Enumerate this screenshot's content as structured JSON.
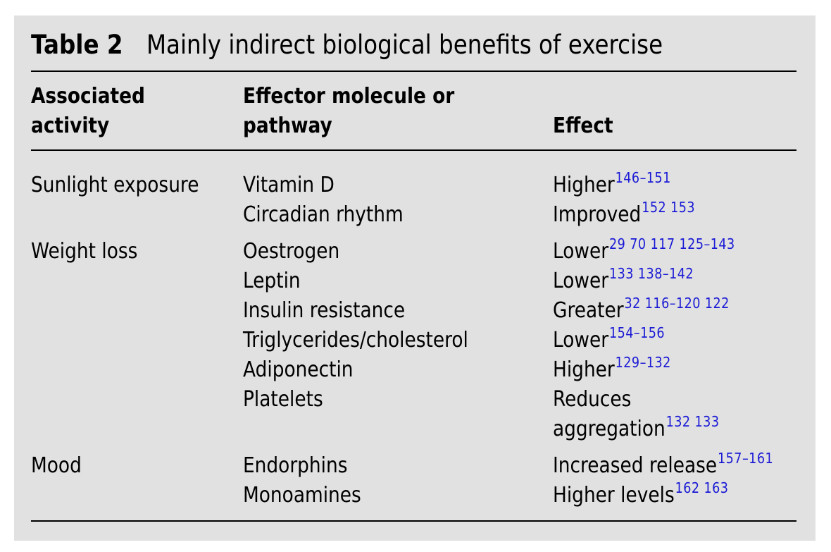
{
  "table": {
    "label": "Table 2",
    "title": "Mainly indirect biological benefits of exercise",
    "headers": {
      "activity": [
        "Associated",
        "activity"
      ],
      "effector": [
        "Effector molecule or",
        "pathway"
      ],
      "effect": "Effect"
    },
    "groups": [
      {
        "activity": "Sunlight exposure",
        "rows": [
          {
            "effector": "Vitamin D",
            "effect": "Higher",
            "refs": "146–151"
          },
          {
            "effector": "Circadian rhythm",
            "effect": "Improved",
            "refs": "152 153"
          }
        ]
      },
      {
        "activity": "Weight loss",
        "rows": [
          {
            "effector": "Oestrogen",
            "effect": "Lower",
            "refs": "29 70 117 125–143"
          },
          {
            "effector": "Leptin",
            "effect": "Lower",
            "refs": "133 138–142"
          },
          {
            "effector": "Insulin resistance",
            "effect": "Greater",
            "refs": "32 116–120 122"
          },
          {
            "effector": "Triglycerides/cholesterol",
            "effect": "Lower",
            "refs": "154–156"
          },
          {
            "effector": "Adiponectin",
            "effect": "Higher",
            "refs": "129–132"
          },
          {
            "effector": "Platelets",
            "effect": "Reduces",
            "effect_line2": "aggregation",
            "refs": "132 133"
          }
        ]
      },
      {
        "activity": "Mood",
        "rows": [
          {
            "effector": "Endorphins",
            "effect": "Increased release",
            "refs": "157–161"
          },
          {
            "effector": "Monoamines",
            "effect": "Higher levels",
            "refs": "162 163"
          }
        ]
      }
    ],
    "colors": {
      "background": "#e1e1e1",
      "reference_link": "#1a1ad6"
    }
  }
}
